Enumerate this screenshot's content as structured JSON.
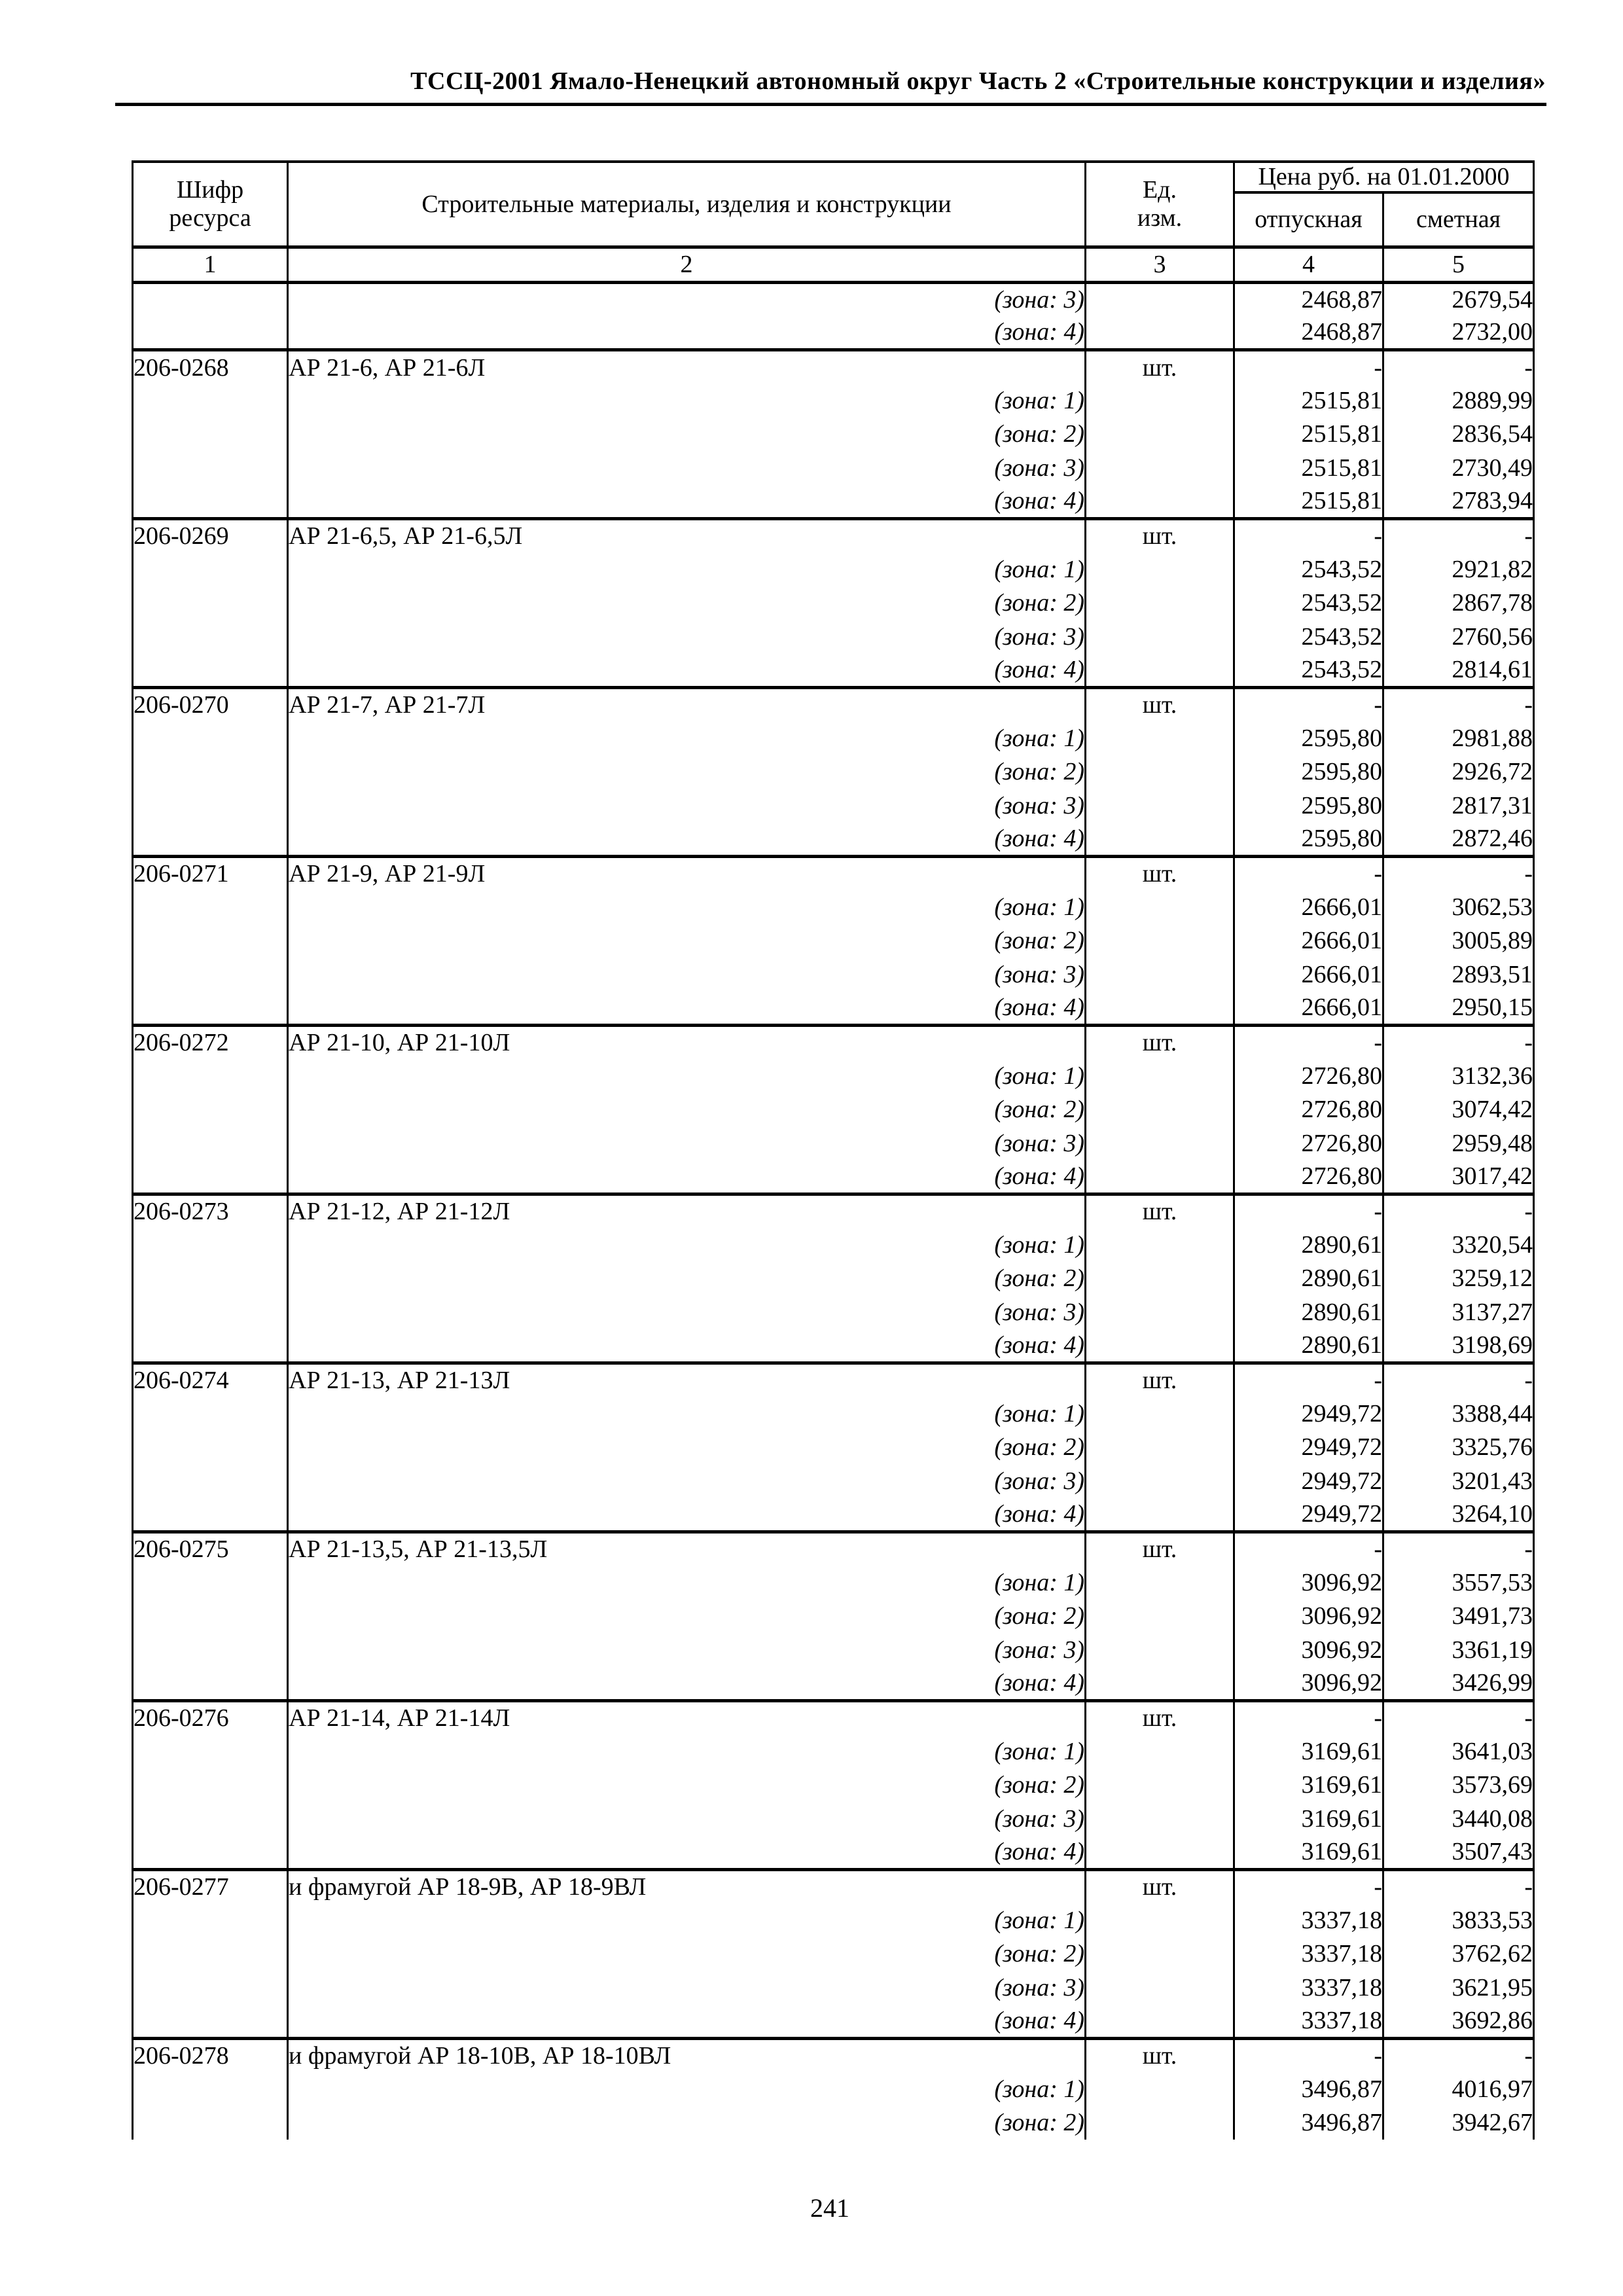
{
  "page": {
    "running_head": "ТССЦ-2001 Ямало-Ненецкий автономный округ Часть 2 «Строительные конструкции и изделия»",
    "page_number": "241"
  },
  "table": {
    "header": {
      "col1": "Шифр\nресурса",
      "col2": "Строительные материалы, изделия и конструкции",
      "col3": "Ед.\nизм.",
      "price_title": "Цена руб. на 01.01.2000",
      "price_sub1": "отпускная",
      "price_sub2": "сметная"
    },
    "column_numbers": [
      "1",
      "2",
      "3",
      "4",
      "5"
    ],
    "groups": [
      {
        "code": null,
        "name": null,
        "unit": null,
        "sale": null,
        "estimate": null,
        "zones": [
          {
            "label": "(зона: 3)",
            "sale": "2468,87",
            "estimate": "2679,54"
          },
          {
            "label": "(зона: 4)",
            "sale": "2468,87",
            "estimate": "2732,00"
          }
        ]
      },
      {
        "code": "206-0268",
        "name": "АР 21-6, АР 21-6Л",
        "unit": "шт.",
        "sale": "-",
        "estimate": "-",
        "zones": [
          {
            "label": "(зона: 1)",
            "sale": "2515,81",
            "estimate": "2889,99"
          },
          {
            "label": "(зона: 2)",
            "sale": "2515,81",
            "estimate": "2836,54"
          },
          {
            "label": "(зона: 3)",
            "sale": "2515,81",
            "estimate": "2730,49"
          },
          {
            "label": "(зона: 4)",
            "sale": "2515,81",
            "estimate": "2783,94"
          }
        ]
      },
      {
        "code": "206-0269",
        "name": "АР 21-6,5, АР 21-6,5Л",
        "unit": "шт.",
        "sale": "-",
        "estimate": "-",
        "zones": [
          {
            "label": "(зона: 1)",
            "sale": "2543,52",
            "estimate": "2921,82"
          },
          {
            "label": "(зона: 2)",
            "sale": "2543,52",
            "estimate": "2867,78"
          },
          {
            "label": "(зона: 3)",
            "sale": "2543,52",
            "estimate": "2760,56"
          },
          {
            "label": "(зона: 4)",
            "sale": "2543,52",
            "estimate": "2814,61"
          }
        ]
      },
      {
        "code": "206-0270",
        "name": "АР 21-7, АР 21-7Л",
        "unit": "шт.",
        "sale": "-",
        "estimate": "-",
        "zones": [
          {
            "label": "(зона: 1)",
            "sale": "2595,80",
            "estimate": "2981,88"
          },
          {
            "label": "(зона: 2)",
            "sale": "2595,80",
            "estimate": "2926,72"
          },
          {
            "label": "(зона: 3)",
            "sale": "2595,80",
            "estimate": "2817,31"
          },
          {
            "label": "(зона: 4)",
            "sale": "2595,80",
            "estimate": "2872,46"
          }
        ]
      },
      {
        "code": "206-0271",
        "name": "АР 21-9, АР 21-9Л",
        "unit": "шт.",
        "sale": "-",
        "estimate": "-",
        "zones": [
          {
            "label": "(зона: 1)",
            "sale": "2666,01",
            "estimate": "3062,53"
          },
          {
            "label": "(зона: 2)",
            "sale": "2666,01",
            "estimate": "3005,89"
          },
          {
            "label": "(зона: 3)",
            "sale": "2666,01",
            "estimate": "2893,51"
          },
          {
            "label": "(зона: 4)",
            "sale": "2666,01",
            "estimate": "2950,15"
          }
        ]
      },
      {
        "code": "206-0272",
        "name": "АР 21-10, АР 21-10Л",
        "unit": "шт.",
        "sale": "-",
        "estimate": "-",
        "zones": [
          {
            "label": "(зона: 1)",
            "sale": "2726,80",
            "estimate": "3132,36"
          },
          {
            "label": "(зона: 2)",
            "sale": "2726,80",
            "estimate": "3074,42"
          },
          {
            "label": "(зона: 3)",
            "sale": "2726,80",
            "estimate": "2959,48"
          },
          {
            "label": "(зона: 4)",
            "sale": "2726,80",
            "estimate": "3017,42"
          }
        ]
      },
      {
        "code": "206-0273",
        "name": "АР 21-12, АР 21-12Л",
        "unit": "шт.",
        "sale": "-",
        "estimate": "-",
        "zones": [
          {
            "label": "(зона: 1)",
            "sale": "2890,61",
            "estimate": "3320,54"
          },
          {
            "label": "(зона: 2)",
            "sale": "2890,61",
            "estimate": "3259,12"
          },
          {
            "label": "(зона: 3)",
            "sale": "2890,61",
            "estimate": "3137,27"
          },
          {
            "label": "(зона: 4)",
            "sale": "2890,61",
            "estimate": "3198,69"
          }
        ]
      },
      {
        "code": "206-0274",
        "name": "АР 21-13, АР 21-13Л",
        "unit": "шт.",
        "sale": "-",
        "estimate": "-",
        "zones": [
          {
            "label": "(зона: 1)",
            "sale": "2949,72",
            "estimate": "3388,44"
          },
          {
            "label": "(зона: 2)",
            "sale": "2949,72",
            "estimate": "3325,76"
          },
          {
            "label": "(зона: 3)",
            "sale": "2949,72",
            "estimate": "3201,43"
          },
          {
            "label": "(зона: 4)",
            "sale": "2949,72",
            "estimate": "3264,10"
          }
        ]
      },
      {
        "code": "206-0275",
        "name": "АР 21-13,5, АР 21-13,5Л",
        "unit": "шт.",
        "sale": "-",
        "estimate": "-",
        "zones": [
          {
            "label": "(зона: 1)",
            "sale": "3096,92",
            "estimate": "3557,53"
          },
          {
            "label": "(зона: 2)",
            "sale": "3096,92",
            "estimate": "3491,73"
          },
          {
            "label": "(зона: 3)",
            "sale": "3096,92",
            "estimate": "3361,19"
          },
          {
            "label": "(зона: 4)",
            "sale": "3096,92",
            "estimate": "3426,99"
          }
        ]
      },
      {
        "code": "206-0276",
        "name": "АР 21-14, АР 21-14Л",
        "unit": "шт.",
        "sale": "-",
        "estimate": "-",
        "zones": [
          {
            "label": "(зона: 1)",
            "sale": "3169,61",
            "estimate": "3641,03"
          },
          {
            "label": "(зона: 2)",
            "sale": "3169,61",
            "estimate": "3573,69"
          },
          {
            "label": "(зона: 3)",
            "sale": "3169,61",
            "estimate": "3440,08"
          },
          {
            "label": "(зона: 4)",
            "sale": "3169,61",
            "estimate": "3507,43"
          }
        ]
      },
      {
        "code": "206-0277",
        "name": "и фрамугой АР 18-9В, АР 18-9ВЛ",
        "unit": "шт.",
        "sale": "-",
        "estimate": "-",
        "zones": [
          {
            "label": "(зона: 1)",
            "sale": "3337,18",
            "estimate": "3833,53"
          },
          {
            "label": "(зона: 2)",
            "sale": "3337,18",
            "estimate": "3762,62"
          },
          {
            "label": "(зона: 3)",
            "sale": "3337,18",
            "estimate": "3621,95"
          },
          {
            "label": "(зона: 4)",
            "sale": "3337,18",
            "estimate": "3692,86"
          }
        ]
      },
      {
        "code": "206-0278",
        "name": "и фрамугой АР 18-10В, АР 18-10ВЛ",
        "unit": "шт.",
        "sale": "-",
        "estimate": "-",
        "zones": [
          {
            "label": "(зона: 1)",
            "sale": "3496,87",
            "estimate": "4016,97"
          },
          {
            "label": "(зона: 2)",
            "sale": "3496,87",
            "estimate": "3942,67"
          }
        ]
      }
    ]
  }
}
